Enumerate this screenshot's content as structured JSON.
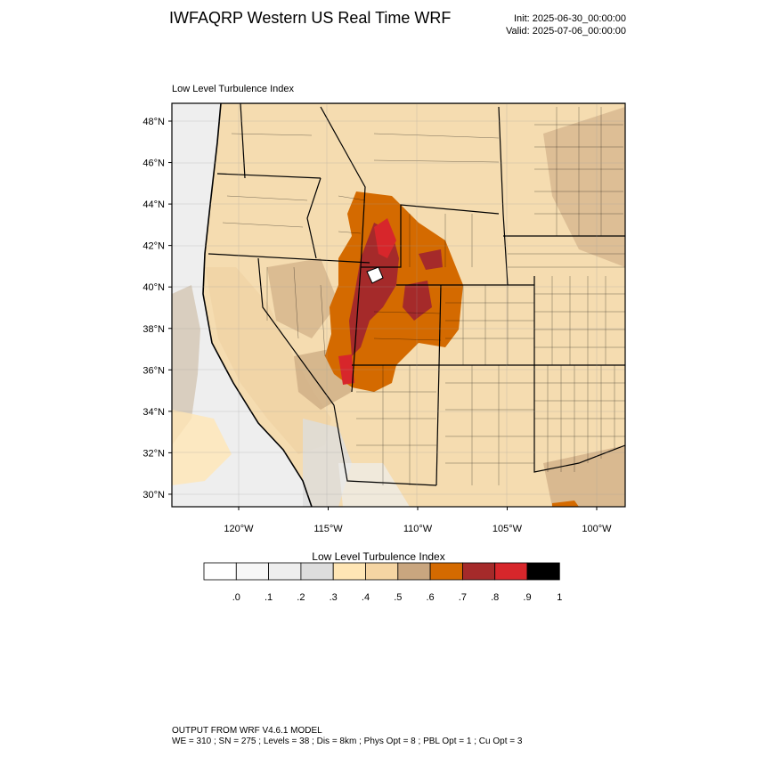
{
  "header": {
    "title": "IWFAQRP Western US Real Time WRF",
    "init": "Init: 2025-06-30_00:00:00",
    "valid": "Valid: 2025-07-06_00:00:00"
  },
  "map": {
    "field_label": "Low Level Turbulence Index",
    "lat_labels": [
      "48°N",
      "46°N",
      "44°N",
      "42°N",
      "40°N",
      "38°N",
      "36°N",
      "34°N",
      "32°N",
      "30°N"
    ],
    "lon_labels": [
      "120°W",
      "115°W",
      "110°W",
      "105°W",
      "100°W"
    ],
    "background_color": "#f5dcb0",
    "ocean_color": "#eeeeee"
  },
  "colorbar": {
    "title": "Low Level Turbulence Index",
    "tick_labels": [
      ".0",
      ".1",
      ".2",
      ".3",
      ".4",
      ".5",
      ".6",
      ".7",
      ".8",
      ".9",
      "1"
    ],
    "colors": [
      "#ffffff",
      "#f7f7f7",
      "#eeeeee",
      "#dddddd",
      "#ffe6b5",
      "#f5d5a3",
      "#c9a67f",
      "#d46a00",
      "#a52a2a",
      "#d7262b",
      "#000000"
    ]
  },
  "footer": {
    "line1": "OUTPUT FROM WRF V4.6.1 MODEL",
    "line2": "WE = 310 ; SN = 275 ; Levels = 38 ; Dis = 8km ; Phys Opt = 8 ; PBL Opt = 1 ; Cu Opt = 3"
  }
}
